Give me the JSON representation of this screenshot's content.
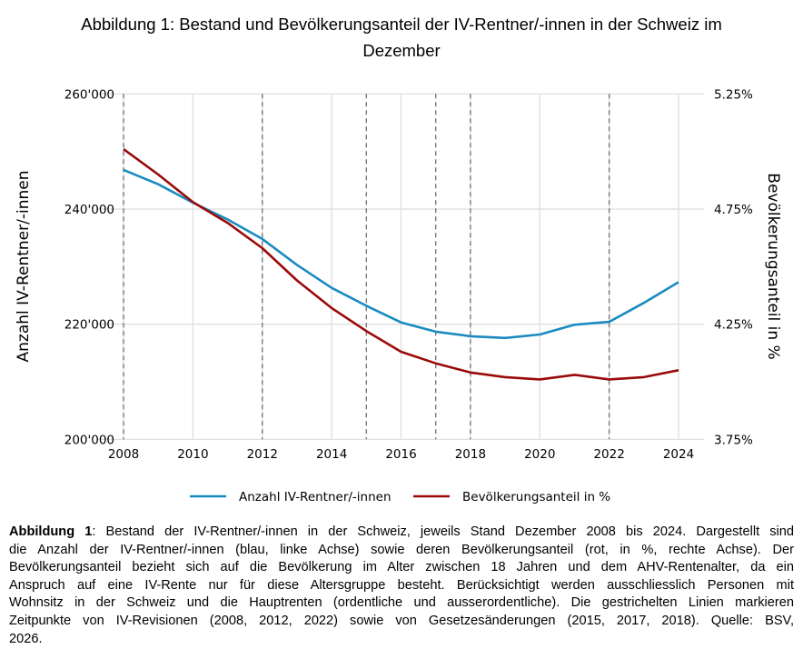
{
  "title_lines": [
    "Abbildung 1: Bestand und Bevölkerungsanteil der IV-Rentner/-innen in der Schweiz im",
    "Dezember"
  ],
  "chart_data": {
    "type": "line",
    "title": "Abbildung 1: Bestand und Bevölkerungsanteil der IV-Rentner/-innen in der Schweiz im Dezember",
    "xlabel": "",
    "ylabel_left": "Anzahl IV-Rentner/-innen",
    "ylabel_right": "Bevölkerungsanteil in %",
    "x": [
      2008,
      2009,
      2010,
      2011,
      2012,
      2013,
      2014,
      2015,
      2016,
      2017,
      2018,
      2019,
      2020,
      2021,
      2022,
      2023,
      2024
    ],
    "xlim": [
      2008,
      2024
    ],
    "x_ticks": [
      "2008",
      "2010",
      "2012",
      "2014",
      "2016",
      "2018",
      "2020",
      "2022",
      "2024"
    ],
    "ylim_left": [
      200000,
      260000
    ],
    "y_ticks_left": [
      "200'000",
      "220'000",
      "240'000",
      "260'000"
    ],
    "ylim_right": [
      3.75,
      5.25
    ],
    "y_ticks_right": [
      "3.75%",
      "4.25%",
      "4.75%",
      "5.25%"
    ],
    "grid": true,
    "vertical_dashed_lines": [
      2008,
      2012,
      2015,
      2017,
      2018,
      2022
    ],
    "legend_placement": "bottom",
    "series": [
      {
        "name": "Anzahl IV-Rentner/-innen",
        "axis": "left",
        "color": "#1a8bc0",
        "values": [
          246800,
          244300,
          241100,
          238200,
          234800,
          230300,
          226300,
          223200,
          220300,
          218700,
          217900,
          217600,
          218200,
          219900,
          220400,
          223700,
          227300
        ]
      },
      {
        "name": "Bevölkerungsanteil in %",
        "axis": "right",
        "color": "#9b0a0a",
        "values": [
          5.01,
          4.9,
          4.78,
          4.69,
          4.58,
          4.44,
          4.32,
          4.22,
          4.13,
          4.08,
          4.04,
          4.02,
          4.01,
          4.03,
          4.01,
          4.02,
          4.05
        ]
      }
    ]
  },
  "caption": {
    "bold": "Abbildung 1",
    "lines": [
      ": Bestand der IV-Rentner/-innen in der Schweiz, jeweils Stand Dezember 2008 bis 2024. Dargestellt sind",
      "die Anzahl der IV-Rentner/-innen (blau, linke Achse) sowie deren Bevölkerungsanteil (rot, in %, rechte Achse). Der",
      "Bevölkerungsanteil bezieht sich auf die Bevölkerung im Alter zwischen 18 Jahren und dem AHV-Rentenalter, da ein",
      "Anspruch auf eine IV-Rente nur für diese Altersgruppe besteht. Berücksichtigt werden ausschliesslich Personen mit",
      "Wohnsitz in der Schweiz und die Hauptrenten (ordentliche und ausserordentliche). Die gestrichelten Linien markieren",
      "Zeitpunkte von IV-Revisionen (2008, 2012, 2022) sowie von Gesetzesänderungen (2015, 2017, 2018). Quelle: BSV,",
      "2026."
    ]
  }
}
